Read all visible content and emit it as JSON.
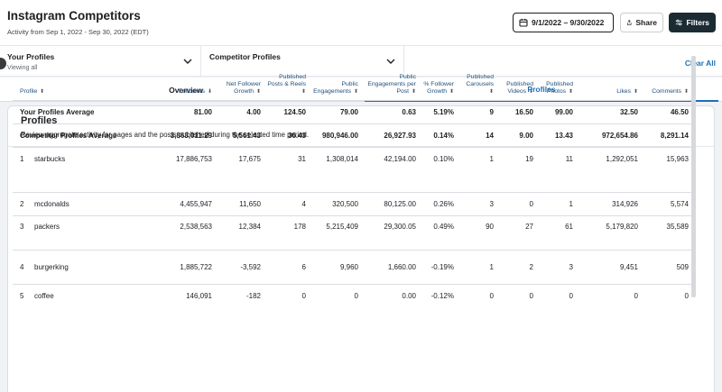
{
  "header": {
    "title": "Instagram Competitors",
    "subtitle": "Activity from Sep 1, 2022 - Sep 30, 2022 (EDT)",
    "date_range": "9/1/2022 – 9/30/2022",
    "share_label": "Share",
    "filters_label": "Filters"
  },
  "filterbar": {
    "your_profiles_label": "Your Profiles",
    "your_profiles_value": "Viewing all",
    "competitor_profiles_label": "Competitor Profiles",
    "clear_all": "Clear All"
  },
  "tabs": {
    "overview": "Overview",
    "profiles": "Profiles"
  },
  "card": {
    "title": "Profiles",
    "description": "Review aggregate activity for pages and the posts published during the selected time period."
  },
  "table": {
    "columns": [
      {
        "label": "Profile",
        "sort": "⬍"
      },
      {
        "label": "Followers",
        "sort": "⬇"
      },
      {
        "label": "Net Follower Growth",
        "sort": "⬍"
      },
      {
        "label": "Published Posts & Reels",
        "sort": "⬍"
      },
      {
        "label": "Public Engagements",
        "sort": "⬍"
      },
      {
        "label": "Public Engagements per Post",
        "sort": "⬍"
      },
      {
        "label": "% Follower Growth",
        "sort": "⬍"
      },
      {
        "label": "Published Carousels",
        "sort": "⬍"
      },
      {
        "label": "Published Videos",
        "sort": "⬍"
      },
      {
        "label": "Published Photos",
        "sort": "⬍"
      },
      {
        "label": "Likes",
        "sort": "⬍"
      },
      {
        "label": "Comments",
        "sort": "⬍"
      }
    ],
    "aggregates": [
      {
        "name": "Your Profiles Average",
        "values": [
          "81.00",
          "4.00",
          "124.50",
          "79.00",
          "0.63",
          "5.19%",
          "9",
          "16.50",
          "99.00",
          "32.50",
          "46.50"
        ]
      },
      {
        "name": "Competitor Profiles Average",
        "values": [
          "3,863,011.29",
          "5,561.43",
          "36.43",
          "980,946.00",
          "26,927.93",
          "0.14%",
          "14",
          "9.00",
          "13.43",
          "972,654.86",
          "8,291.14"
        ]
      }
    ],
    "rows": [
      {
        "num": "1",
        "name": "starbucks",
        "values": [
          "17,886,753",
          "17,675",
          "31",
          "1,308,014",
          "42,194.00",
          "0.10%",
          "1",
          "19",
          "11",
          "1,292,051",
          "15,963"
        ]
      },
      {
        "num": "2",
        "name": "mcdonalds",
        "values": [
          "4,455,947",
          "11,650",
          "4",
          "320,500",
          "80,125.00",
          "0.26%",
          "3",
          "0",
          "1",
          "314,926",
          "5,574"
        ]
      },
      {
        "num": "3",
        "name": "packers",
        "values": [
          "2,538,563",
          "12,384",
          "178",
          "5,215,409",
          "29,300.05",
          "0.49%",
          "90",
          "27",
          "61",
          "5,179,820",
          "35,589"
        ]
      },
      {
        "num": "4",
        "name": "burgerking",
        "values": [
          "1,885,722",
          "-3,592",
          "6",
          "9,960",
          "1,660.00",
          "-0.19%",
          "1",
          "2",
          "3",
          "9,451",
          "509"
        ]
      },
      {
        "num": "5",
        "name": "coffee",
        "values": [
          "146,091",
          "-182",
          "0",
          "0",
          "0.00",
          "-0.12%",
          "0",
          "0",
          "0",
          "0",
          "0"
        ]
      }
    ]
  }
}
